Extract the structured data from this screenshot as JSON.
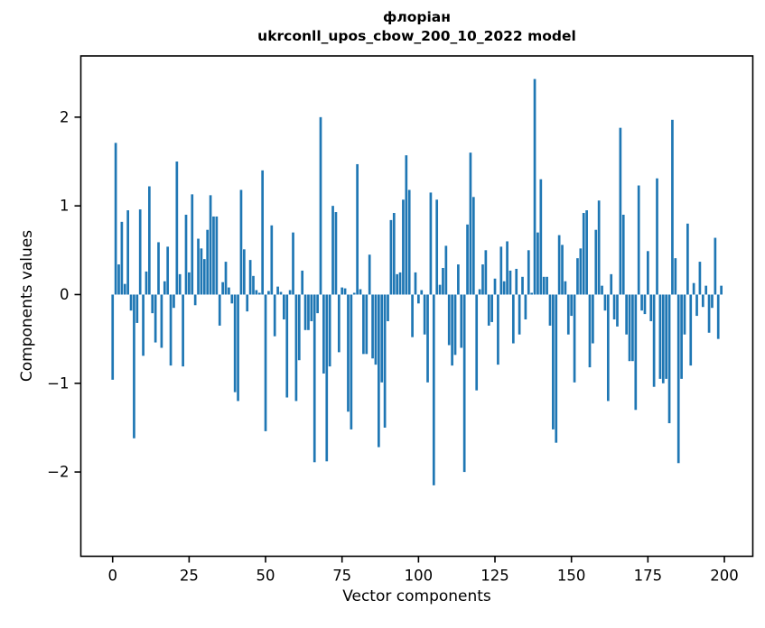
{
  "chart_data": {
    "type": "bar",
    "title": "флоріан",
    "subtitle": "ukrconll_upos_cbow_200_10_2022 model",
    "xlabel": "Vector components",
    "ylabel": "Components values",
    "x_tick_values": [
      0,
      25,
      50,
      75,
      100,
      125,
      150,
      175,
      200
    ],
    "x_tick_labels": [
      "0",
      "25",
      "50",
      "75",
      "100",
      "125",
      "150",
      "175",
      "200"
    ],
    "y_tick_values": [
      -2,
      -1,
      0,
      1,
      2
    ],
    "y_tick_labels": [
      "−2",
      "−1",
      "0",
      "1",
      "2"
    ],
    "xlim": [
      -10.4,
      209.3
    ],
    "ylim": [
      -2.95,
      2.69
    ],
    "grid": false,
    "legend_position": "none",
    "bar_color": "#1f77b4",
    "axis_color": "#000000",
    "x_start": 0,
    "x_step": 1,
    "values": [
      -0.96,
      1.71,
      0.34,
      0.82,
      0.12,
      0.95,
      -0.18,
      -1.62,
      -0.32,
      0.96,
      -0.69,
      0.26,
      1.22,
      -0.21,
      -0.54,
      0.59,
      -0.6,
      0.15,
      0.54,
      -0.8,
      -0.15,
      1.5,
      0.23,
      -0.81,
      0.9,
      0.25,
      1.13,
      -0.12,
      0.63,
      0.52,
      0.4,
      0.73,
      1.12,
      0.88,
      0.88,
      -0.35,
      0.14,
      0.37,
      0.08,
      -0.1,
      -1.1,
      -1.2,
      1.18,
      0.51,
      -0.19,
      0.39,
      0.21,
      0.05,
      0.02,
      1.4,
      -1.54,
      0.04,
      0.78,
      -0.47,
      0.09,
      0.03,
      -0.28,
      -1.16,
      0.05,
      0.7,
      -1.2,
      -0.74,
      0.27,
      -0.4,
      -0.4,
      -0.3,
      -1.89,
      -0.21,
      2.0,
      -0.89,
      -1.88,
      -0.81,
      1.0,
      0.93,
      -0.65,
      0.08,
      0.07,
      -1.32,
      -1.52,
      0.02,
      1.47,
      0.06,
      -0.67,
      -0.67,
      0.45,
      -0.72,
      -0.79,
      -1.72,
      -0.99,
      -1.5,
      -0.3,
      0.84,
      0.92,
      0.23,
      0.25,
      1.07,
      1.57,
      1.18,
      -0.48,
      0.25,
      -0.1,
      0.05,
      -0.45,
      -0.99,
      1.15,
      -2.15,
      1.07,
      0.11,
      0.3,
      0.55,
      -0.57,
      -0.8,
      -0.68,
      0.34,
      -0.6,
      -2.0,
      0.79,
      1.6,
      1.1,
      -1.08,
      0.06,
      0.34,
      0.5,
      -0.35,
      -0.31,
      0.18,
      -0.79,
      0.54,
      0.15,
      0.6,
      0.27,
      -0.55,
      0.29,
      -0.45,
      0.2,
      -0.28,
      0.5,
      0.02,
      2.43,
      0.7,
      1.3,
      0.2,
      0.2,
      -0.35,
      -1.52,
      -1.67,
      0.67,
      0.56,
      0.15,
      -0.45,
      -0.24,
      -0.99,
      0.41,
      0.52,
      0.92,
      0.95,
      -0.82,
      -0.55,
      0.73,
      1.06,
      0.1,
      -0.18,
      -1.2,
      0.23,
      -0.28,
      -0.36,
      1.88,
      0.9,
      -0.45,
      -0.75,
      -0.75,
      -1.3,
      1.23,
      -0.18,
      -0.22,
      0.49,
      -0.3,
      -1.04,
      1.31,
      -0.95,
      -1.0,
      -0.95,
      -1.45,
      1.97,
      0.41,
      -1.9,
      -0.95,
      -0.45,
      0.8,
      -0.8,
      0.13,
      -0.24,
      0.37,
      -0.14,
      0.1,
      -0.43,
      -0.15,
      0.64,
      -0.5,
      0.1
    ]
  }
}
